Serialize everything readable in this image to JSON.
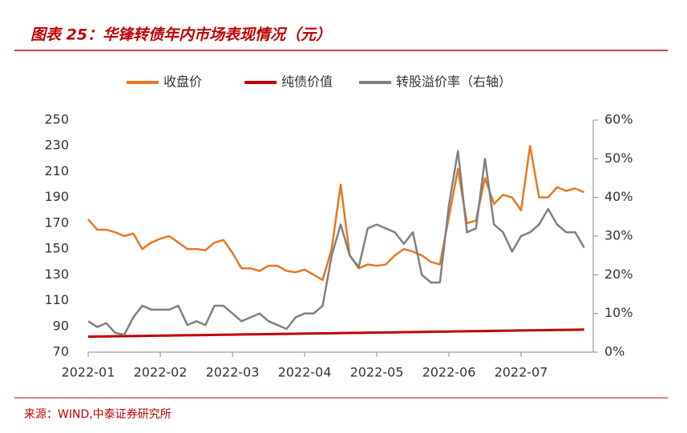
{
  "header": {
    "title": "图表 25：华锋转债年内市场表现情况（元）"
  },
  "chart_data": {
    "type": "line",
    "categories": [
      "2022-01",
      null,
      null,
      null,
      null,
      null,
      null,
      null,
      "2022-02",
      null,
      null,
      null,
      null,
      null,
      null,
      null,
      "2022-03",
      null,
      null,
      null,
      null,
      null,
      null,
      null,
      "2022-04",
      null,
      null,
      null,
      null,
      null,
      null,
      null,
      "2022-05",
      null,
      null,
      null,
      null,
      null,
      null,
      null,
      "2022-06",
      null,
      null,
      null,
      null,
      null,
      null,
      null,
      "2022-07",
      null,
      null,
      null,
      null,
      null,
      null,
      null
    ],
    "series": [
      {
        "name": "收盘价",
        "color": "#e87722",
        "values": [
          173,
          165,
          165,
          163,
          160,
          162,
          150,
          155,
          158,
          160,
          155,
          150,
          150,
          149,
          155,
          157,
          147,
          135,
          135,
          133,
          137,
          137,
          133,
          132,
          134,
          130,
          126,
          150,
          200,
          145,
          135,
          138,
          137,
          138,
          145,
          150,
          148,
          145,
          140,
          138,
          175,
          212,
          170,
          172,
          205,
          185,
          192,
          190,
          180,
          230,
          190,
          190,
          198,
          195,
          197,
          194
        ]
      },
      {
        "name": "纯债价值",
        "color": "#c00000",
        "values": [
          82.0,
          82.1,
          82.2,
          82.3,
          82.4,
          82.5,
          82.6,
          82.7,
          82.8,
          82.9,
          83.0,
          83.1,
          83.2,
          83.3,
          83.4,
          83.5,
          83.6,
          83.7,
          83.8,
          83.9,
          84.0,
          84.1,
          84.2,
          84.3,
          84.4,
          84.5,
          84.6,
          84.7,
          84.8,
          84.9,
          85.0,
          85.1,
          85.2,
          85.3,
          85.4,
          85.5,
          85.6,
          85.7,
          85.8,
          85.9,
          86.0,
          86.1,
          86.2,
          86.3,
          86.4,
          86.5,
          86.6,
          86.7,
          86.8,
          86.9,
          87.0,
          87.1,
          87.2,
          87.3,
          87.4,
          87.5
        ]
      },
      {
        "name": "转股溢价率（右轴）",
        "color": "#808080",
        "axis": "y2",
        "values": [
          8,
          6.5,
          7.5,
          5,
          4.5,
          9,
          12,
          11,
          11,
          11,
          12,
          7,
          8,
          7,
          12,
          12,
          10,
          8,
          9,
          10,
          8,
          7,
          6,
          9,
          10,
          10,
          12,
          25,
          33,
          25,
          22,
          32,
          33,
          32,
          31,
          28,
          31,
          20,
          18,
          18,
          38,
          52,
          31,
          32,
          50,
          33,
          31,
          26,
          30,
          31,
          33,
          37,
          33,
          31,
          31,
          27
        ]
      }
    ],
    "ylim": [
      70,
      250
    ],
    "yticks": [
      70,
      90,
      110,
      130,
      150,
      170,
      190,
      210,
      230,
      250
    ],
    "y2lim": [
      0,
      60
    ],
    "y2ticks": [
      {
        "value": 0,
        "label": "0%"
      },
      {
        "value": 10,
        "label": "10%"
      },
      {
        "value": 20,
        "label": "20%"
      },
      {
        "value": 30,
        "label": "30%"
      },
      {
        "value": 40,
        "label": "40%"
      },
      {
        "value": 50,
        "label": "50%"
      },
      {
        "value": 60,
        "label": "60%"
      }
    ]
  },
  "footer": {
    "source": "来源：WIND,中泰证券研究所"
  }
}
